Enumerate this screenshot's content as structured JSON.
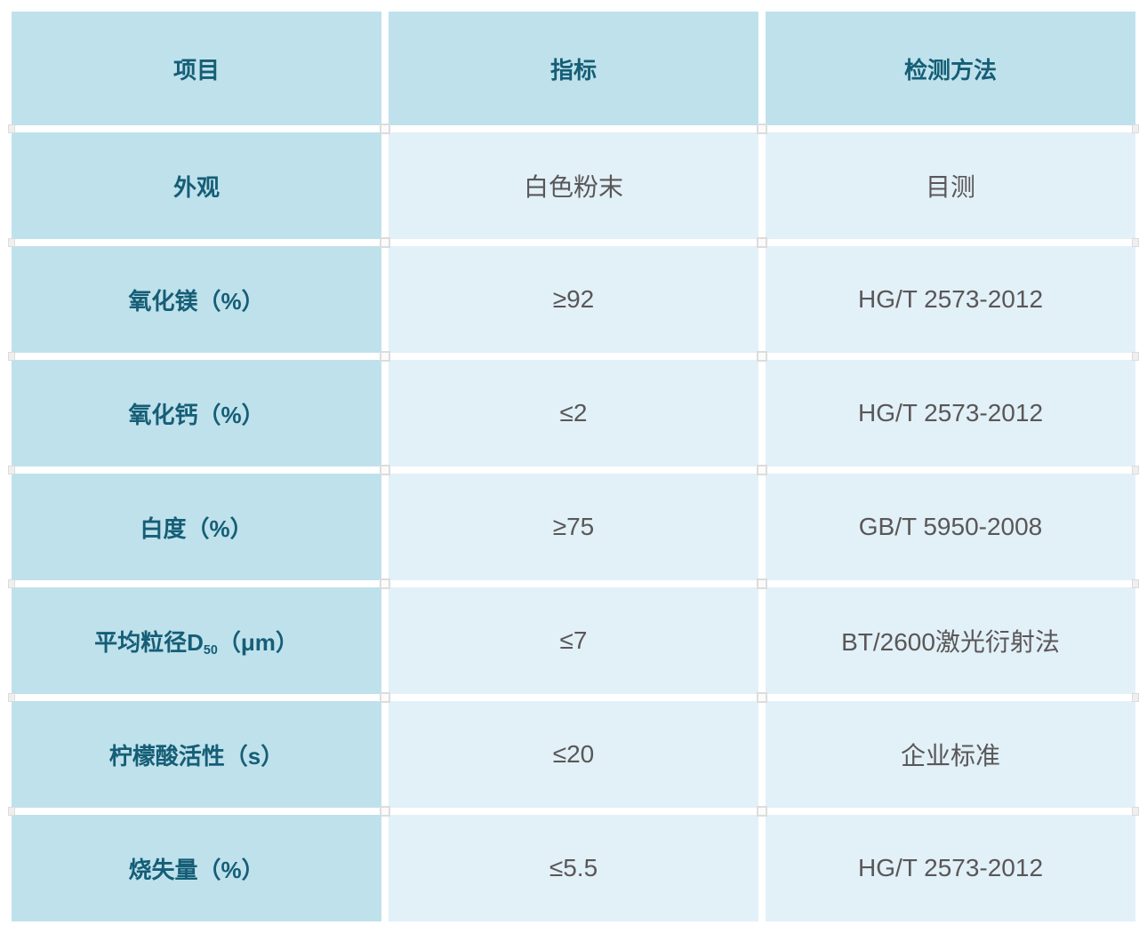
{
  "colors": {
    "cell_dark": "#bfe1ec",
    "cell_light": "#e2f0f8",
    "header_text": "#155e76",
    "value_text": "#595757"
  },
  "table": {
    "columns": [
      "项目",
      "指标",
      "检测方法"
    ],
    "rows": [
      {
        "item": "外观",
        "sub": "",
        "tail": "",
        "value": "白色粉末",
        "method": "目测"
      },
      {
        "item": "氧化镁（%）",
        "sub": "",
        "tail": "",
        "value": "≥92",
        "method": "HG/T 2573-2012"
      },
      {
        "item": "氧化钙（%）",
        "sub": "",
        "tail": "",
        "value": "≤2",
        "method": "HG/T 2573-2012"
      },
      {
        "item": "白度（%）",
        "sub": "",
        "tail": "",
        "value": "≥75",
        "method": "GB/T 5950-2008"
      },
      {
        "item": "平均粒径D",
        "sub": "50",
        "tail": "（μm）",
        "value": "≤7",
        "method": "BT/2600激光衍射法"
      },
      {
        "item": "柠檬酸活性（s）",
        "sub": "",
        "tail": "",
        "value": "≤20",
        "method": "企业标准"
      },
      {
        "item": "烧失量（%）",
        "sub": "",
        "tail": "",
        "value": "≤5.5",
        "method": "HG/T 2573-2012"
      }
    ]
  }
}
